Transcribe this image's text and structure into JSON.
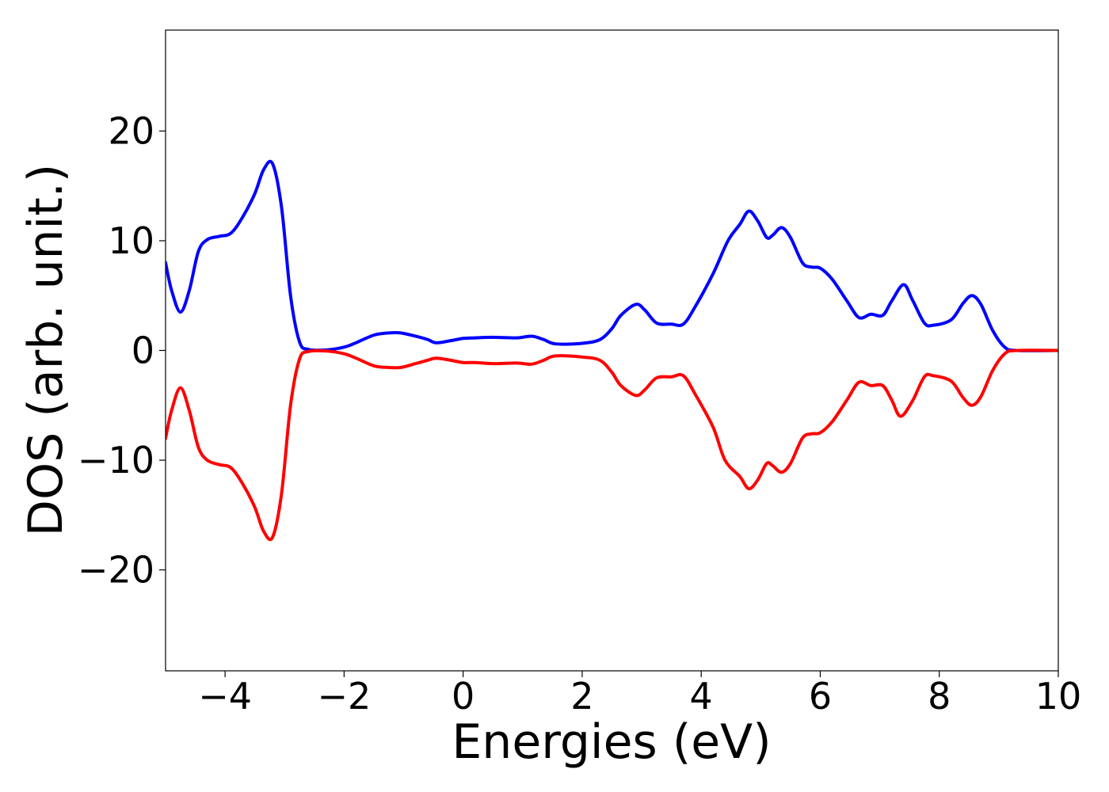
{
  "chart_data": {
    "type": "line",
    "title": "",
    "xlabel": "Energies (eV)",
    "ylabel": "DOS (arb. unit.)",
    "xlim": [
      -5,
      10
    ],
    "ylim": [
      -29.2,
      29.2
    ],
    "grid": false,
    "legend": "none",
    "xticks": [
      {
        "value": -4,
        "label": "−4"
      },
      {
        "value": -2,
        "label": "−2"
      },
      {
        "value": 0,
        "label": "0"
      },
      {
        "value": 2,
        "label": "2"
      },
      {
        "value": 4,
        "label": "4"
      },
      {
        "value": 6,
        "label": "6"
      },
      {
        "value": 8,
        "label": "8"
      },
      {
        "value": 10,
        "label": "10"
      }
    ],
    "yticks": [
      {
        "value": 20,
        "label": "20"
      },
      {
        "value": 10,
        "label": "10"
      },
      {
        "value": 0,
        "label": "0"
      },
      {
        "value": -10,
        "label": "−10"
      },
      {
        "value": -20,
        "label": "−20"
      }
    ],
    "series": [
      {
        "color": "#0000ff",
        "points": [
          [
            -5.0,
            8.0
          ],
          [
            -4.9,
            5.5
          ],
          [
            -4.75,
            3.5
          ],
          [
            -4.6,
            5.5
          ],
          [
            -4.45,
            9.0
          ],
          [
            -4.3,
            10.1
          ],
          [
            -4.1,
            10.4
          ],
          [
            -3.9,
            10.7
          ],
          [
            -3.7,
            12.2
          ],
          [
            -3.5,
            14.3
          ],
          [
            -3.35,
            16.5
          ],
          [
            -3.2,
            17.0
          ],
          [
            -3.05,
            13.0
          ],
          [
            -2.9,
            5.0
          ],
          [
            -2.75,
            0.8
          ],
          [
            -2.6,
            0.1
          ],
          [
            -2.3,
            0.05
          ],
          [
            -2.0,
            0.3
          ],
          [
            -1.8,
            0.7
          ],
          [
            -1.5,
            1.4
          ],
          [
            -1.25,
            1.6
          ],
          [
            -1.05,
            1.6
          ],
          [
            -0.8,
            1.3
          ],
          [
            -0.6,
            1.0
          ],
          [
            -0.45,
            0.7
          ],
          [
            -0.2,
            0.9
          ],
          [
            0.0,
            1.1
          ],
          [
            0.2,
            1.15
          ],
          [
            0.5,
            1.2
          ],
          [
            0.9,
            1.15
          ],
          [
            1.15,
            1.3
          ],
          [
            1.35,
            1.0
          ],
          [
            1.55,
            0.6
          ],
          [
            2.0,
            0.65
          ],
          [
            2.3,
            1.0
          ],
          [
            2.5,
            2.0
          ],
          [
            2.65,
            3.2
          ],
          [
            2.9,
            4.2
          ],
          [
            3.05,
            3.7
          ],
          [
            3.25,
            2.5
          ],
          [
            3.5,
            2.4
          ],
          [
            3.7,
            2.4
          ],
          [
            3.9,
            4.0
          ],
          [
            4.2,
            7.0
          ],
          [
            4.45,
            10.0
          ],
          [
            4.65,
            11.5
          ],
          [
            4.8,
            12.7
          ],
          [
            4.95,
            11.8
          ],
          [
            5.1,
            10.3
          ],
          [
            5.2,
            10.5
          ],
          [
            5.35,
            11.2
          ],
          [
            5.5,
            10.3
          ],
          [
            5.7,
            8.0
          ],
          [
            5.85,
            7.6
          ],
          [
            6.0,
            7.5
          ],
          [
            6.2,
            6.5
          ],
          [
            6.45,
            4.5
          ],
          [
            6.65,
            3.0
          ],
          [
            6.85,
            3.3
          ],
          [
            7.05,
            3.2
          ],
          [
            7.2,
            4.5
          ],
          [
            7.4,
            6.0
          ],
          [
            7.55,
            4.6
          ],
          [
            7.75,
            2.5
          ],
          [
            7.9,
            2.3
          ],
          [
            8.2,
            2.8
          ],
          [
            8.4,
            4.3
          ],
          [
            8.55,
            5.0
          ],
          [
            8.7,
            4.2
          ],
          [
            8.9,
            1.8
          ],
          [
            9.1,
            0.3
          ],
          [
            9.3,
            0.0
          ],
          [
            10.0,
            0.0
          ]
        ]
      },
      {
        "color": "#ff0000",
        "points": [
          [
            -5.0,
            -8.0
          ],
          [
            -4.9,
            -5.5
          ],
          [
            -4.75,
            -3.4
          ],
          [
            -4.6,
            -5.5
          ],
          [
            -4.45,
            -8.8
          ],
          [
            -4.3,
            -10.0
          ],
          [
            -4.1,
            -10.4
          ],
          [
            -3.9,
            -10.7
          ],
          [
            -3.7,
            -12.2
          ],
          [
            -3.5,
            -14.3
          ],
          [
            -3.35,
            -16.5
          ],
          [
            -3.2,
            -17.0
          ],
          [
            -3.05,
            -13.0
          ],
          [
            -2.9,
            -5.0
          ],
          [
            -2.75,
            -0.8
          ],
          [
            -2.6,
            -0.1
          ],
          [
            -2.3,
            -0.05
          ],
          [
            -2.0,
            -0.3
          ],
          [
            -1.8,
            -0.7
          ],
          [
            -1.5,
            -1.4
          ],
          [
            -1.25,
            -1.55
          ],
          [
            -1.05,
            -1.55
          ],
          [
            -0.8,
            -1.2
          ],
          [
            -0.6,
            -0.9
          ],
          [
            -0.45,
            -0.7
          ],
          [
            -0.2,
            -0.9
          ],
          [
            0.0,
            -1.1
          ],
          [
            0.2,
            -1.1
          ],
          [
            0.5,
            -1.2
          ],
          [
            0.9,
            -1.15
          ],
          [
            1.15,
            -1.25
          ],
          [
            1.35,
            -0.9
          ],
          [
            1.55,
            -0.5
          ],
          [
            2.0,
            -0.6
          ],
          [
            2.3,
            -0.9
          ],
          [
            2.5,
            -2.0
          ],
          [
            2.65,
            -3.2
          ],
          [
            2.9,
            -4.1
          ],
          [
            3.05,
            -3.6
          ],
          [
            3.25,
            -2.5
          ],
          [
            3.5,
            -2.4
          ],
          [
            3.7,
            -2.3
          ],
          [
            3.9,
            -4.0
          ],
          [
            4.2,
            -7.0
          ],
          [
            4.4,
            -10.0
          ],
          [
            4.65,
            -11.5
          ],
          [
            4.8,
            -12.6
          ],
          [
            4.95,
            -11.8
          ],
          [
            5.1,
            -10.3
          ],
          [
            5.2,
            -10.5
          ],
          [
            5.35,
            -11.1
          ],
          [
            5.5,
            -10.3
          ],
          [
            5.7,
            -8.0
          ],
          [
            5.85,
            -7.6
          ],
          [
            6.0,
            -7.5
          ],
          [
            6.2,
            -6.5
          ],
          [
            6.45,
            -4.5
          ],
          [
            6.65,
            -2.9
          ],
          [
            6.85,
            -3.2
          ],
          [
            7.05,
            -3.2
          ],
          [
            7.2,
            -4.5
          ],
          [
            7.35,
            -6.0
          ],
          [
            7.55,
            -4.6
          ],
          [
            7.75,
            -2.4
          ],
          [
            7.9,
            -2.3
          ],
          [
            8.2,
            -2.8
          ],
          [
            8.4,
            -4.3
          ],
          [
            8.55,
            -5.0
          ],
          [
            8.7,
            -4.2
          ],
          [
            8.9,
            -1.8
          ],
          [
            9.1,
            -0.3
          ],
          [
            9.3,
            0.0
          ],
          [
            10.0,
            0.0
          ]
        ]
      }
    ]
  }
}
